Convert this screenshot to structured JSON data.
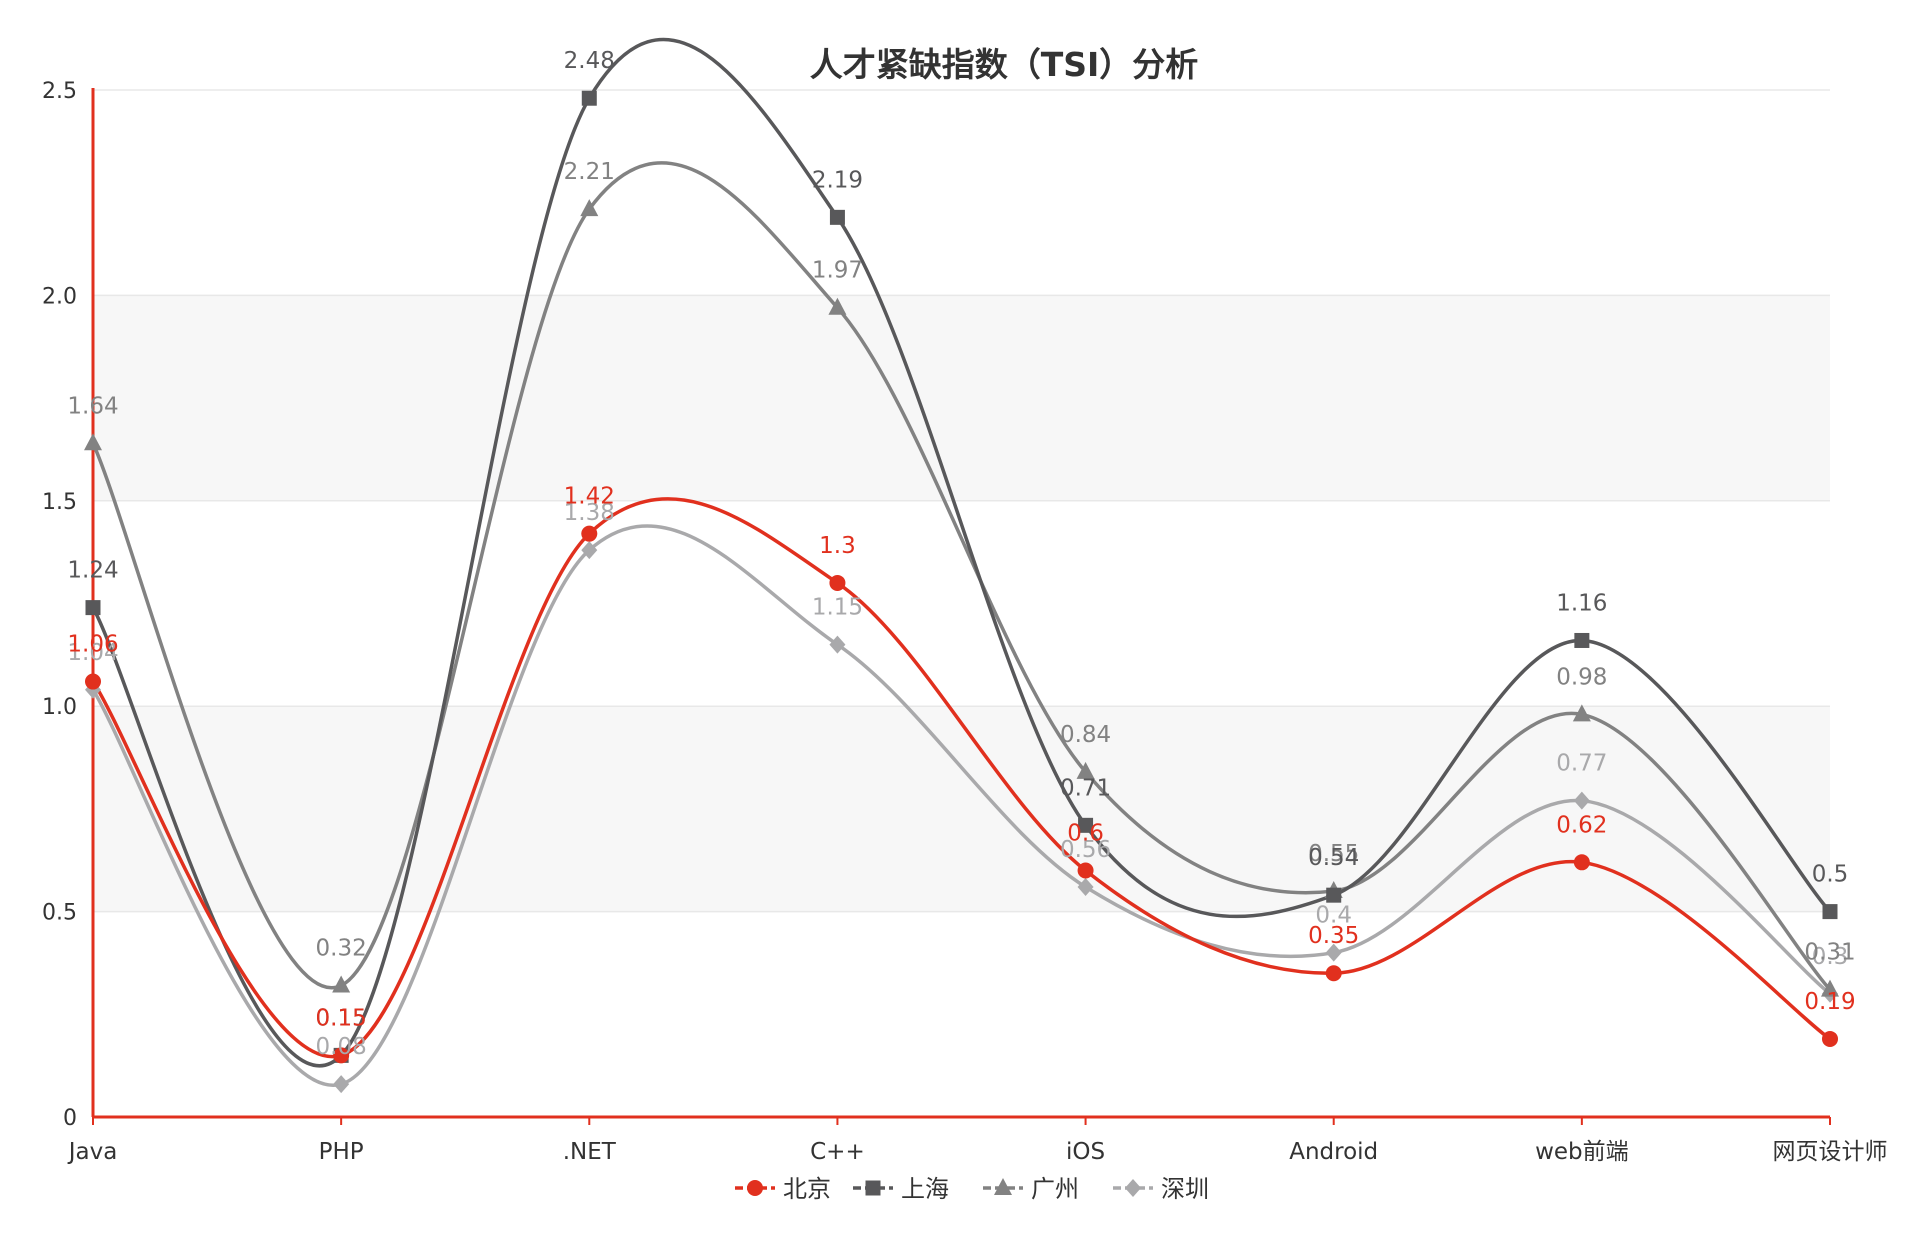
{
  "chart_data": {
    "type": "line",
    "title": "人才紧缺指数（TSI）分析",
    "categories": [
      "Java",
      "PHP",
      ".NET",
      "C++",
      "iOS",
      "Android",
      "web前端",
      "网页设计师"
    ],
    "ylim": [
      0,
      2.5
    ],
    "yticks": [
      0,
      0.5,
      1.0,
      1.5,
      2.0,
      2.5
    ],
    "ytick_labels": [
      "0",
      "0.5",
      "1.0",
      "1.5",
      "2.0",
      "2.5"
    ],
    "grid": true,
    "legend_position": "bottom",
    "series": [
      {
        "name": "北京",
        "values": [
          1.06,
          0.15,
          1.42,
          1.3,
          0.6,
          0.35,
          0.62,
          0.19
        ],
        "color": "#e1301e",
        "marker": "circle"
      },
      {
        "name": "上海",
        "values": [
          1.24,
          0.15,
          2.48,
          2.19,
          0.71,
          0.54,
          1.16,
          0.5
        ],
        "color": "#58585a",
        "marker": "square"
      },
      {
        "name": "广州",
        "values": [
          1.64,
          0.32,
          2.21,
          1.97,
          0.84,
          0.55,
          0.98,
          0.31
        ],
        "color": "#828282",
        "marker": "triangle"
      },
      {
        "name": "深圳",
        "values": [
          1.04,
          0.08,
          1.38,
          1.15,
          0.56,
          0.4,
          0.77,
          0.3
        ],
        "color": "#a9a9ab",
        "marker": "diamond"
      }
    ]
  }
}
